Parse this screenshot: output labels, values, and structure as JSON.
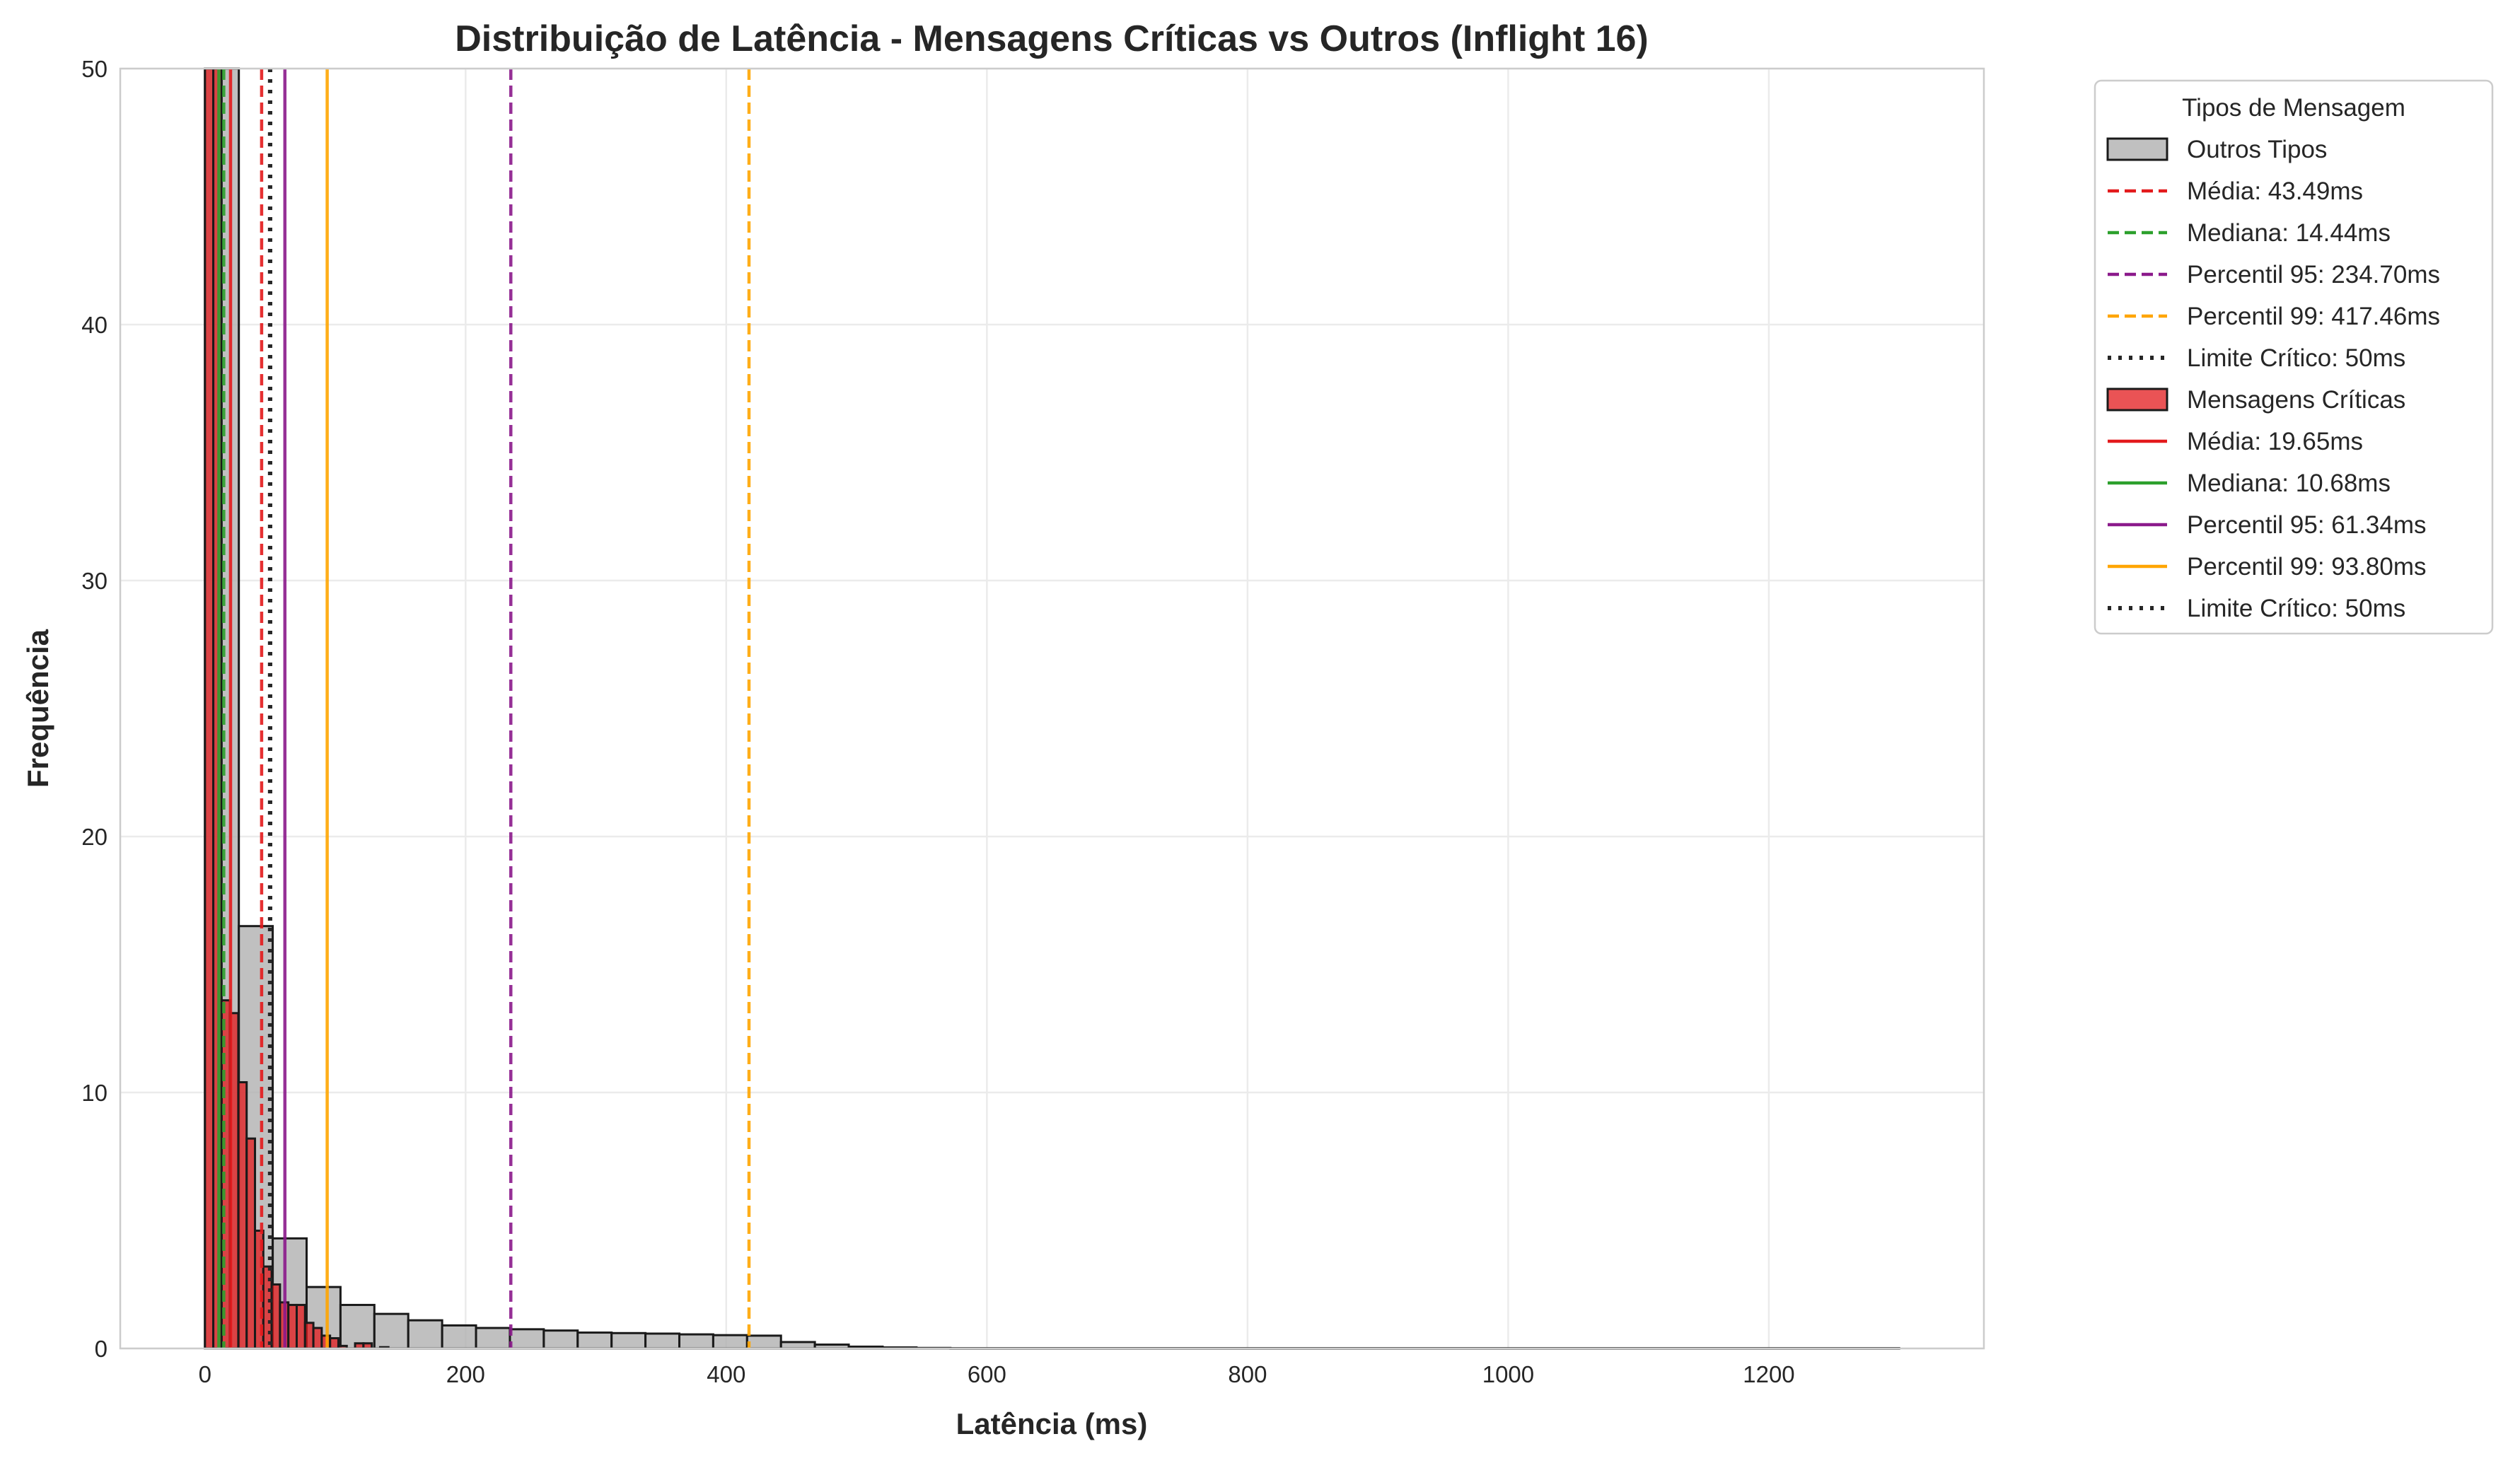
{
  "chart_data": {
    "type": "bar",
    "title": "Distribuição de Latência - Mensagens Críticas vs Outros (Inflight 16)",
    "xlabel": "Latência (ms)",
    "ylabel": "Frequência",
    "xlim": [
      -65,
      1365
    ],
    "ylim": [
      0,
      50
    ],
    "x_ticks": [
      0,
      200,
      400,
      600,
      800,
      1000,
      1200
    ],
    "y_ticks": [
      0,
      10,
      20,
      30,
      40,
      50
    ],
    "grid": true,
    "legend_title": "Tipos de Mensagem",
    "legend_position": "outside-right",
    "histograms": [
      {
        "name": "Outros Tipos",
        "color": "#b0b0b0",
        "bins": [
          {
            "x0": 0,
            "x1": 26,
            "value": 50
          },
          {
            "x0": 26,
            "x1": 52,
            "value": 16.5
          },
          {
            "x0": 52,
            "x1": 78,
            "value": 4.3
          },
          {
            "x0": 78,
            "x1": 104,
            "value": 2.4
          },
          {
            "x0": 104,
            "x1": 130,
            "value": 1.7
          },
          {
            "x0": 130,
            "x1": 156,
            "value": 1.35
          },
          {
            "x0": 156,
            "x1": 182,
            "value": 1.1
          },
          {
            "x0": 182,
            "x1": 208,
            "value": 0.9
          },
          {
            "x0": 208,
            "x1": 234,
            "value": 0.8
          },
          {
            "x0": 234,
            "x1": 260,
            "value": 0.75
          },
          {
            "x0": 260,
            "x1": 286,
            "value": 0.7
          },
          {
            "x0": 286,
            "x1": 312,
            "value": 0.62
          },
          {
            "x0": 312,
            "x1": 338,
            "value": 0.6
          },
          {
            "x0": 338,
            "x1": 364,
            "value": 0.58
          },
          {
            "x0": 364,
            "x1": 390,
            "value": 0.55
          },
          {
            "x0": 390,
            "x1": 416,
            "value": 0.52
          },
          {
            "x0": 416,
            "x1": 442,
            "value": 0.5
          },
          {
            "x0": 442,
            "x1": 468,
            "value": 0.25
          },
          {
            "x0": 468,
            "x1": 494,
            "value": 0.15
          },
          {
            "x0": 494,
            "x1": 520,
            "value": 0.07
          },
          {
            "x0": 520,
            "x1": 546,
            "value": 0.04
          },
          {
            "x0": 546,
            "x1": 572,
            "value": 0.02
          },
          {
            "x0": 572,
            "x1": 1300,
            "value": 0.01
          }
        ]
      },
      {
        "name": "Mensagens Críticas",
        "color": "#e31a1c",
        "bins": [
          {
            "x0": 0,
            "x1": 6.4,
            "value": 50
          },
          {
            "x0": 6.4,
            "x1": 12.8,
            "value": 50
          },
          {
            "x0": 12.8,
            "x1": 19.2,
            "value": 13.6
          },
          {
            "x0": 19.2,
            "x1": 25.6,
            "value": 13.1
          },
          {
            "x0": 25.6,
            "x1": 32,
            "value": 10.4
          },
          {
            "x0": 32,
            "x1": 38.4,
            "value": 8.2
          },
          {
            "x0": 38.4,
            "x1": 44.8,
            "value": 4.6
          },
          {
            "x0": 44.8,
            "x1": 51.2,
            "value": 3.2
          },
          {
            "x0": 51.2,
            "x1": 57.6,
            "value": 2.5
          },
          {
            "x0": 57.6,
            "x1": 64,
            "value": 1.8
          },
          {
            "x0": 64,
            "x1": 70.4,
            "value": 1.7
          },
          {
            "x0": 70.4,
            "x1": 76.8,
            "value": 1.7
          },
          {
            "x0": 76.8,
            "x1": 83.2,
            "value": 1.0
          },
          {
            "x0": 83.2,
            "x1": 89.6,
            "value": 0.8
          },
          {
            "x0": 89.6,
            "x1": 96,
            "value": 0.5
          },
          {
            "x0": 96,
            "x1": 102.4,
            "value": 0.4
          },
          {
            "x0": 102.4,
            "x1": 108.8,
            "value": 0.1
          },
          {
            "x0": 115.2,
            "x1": 121.6,
            "value": 0.2
          },
          {
            "x0": 121.6,
            "x1": 128,
            "value": 0.2
          },
          {
            "x0": 134.4,
            "x1": 140.8,
            "value": 0.05
          }
        ]
      }
    ],
    "reference_lines": [
      {
        "label": "Média: 43.49ms",
        "x": 43.49,
        "color": "#e31a1c",
        "style": "dashed"
      },
      {
        "label": "Mediana: 14.44ms",
        "x": 14.44,
        "color": "#2ca02c",
        "style": "dashed"
      },
      {
        "label": "Percentil 95: 234.70ms",
        "x": 234.7,
        "color": "#8b1a8b",
        "style": "dashed"
      },
      {
        "label": "Percentil 99: 417.46ms",
        "x": 417.46,
        "color": "#ffa500",
        "style": "dashed"
      },
      {
        "label": "Limite Crítico: 50ms",
        "x": 50,
        "color": "#262626",
        "style": "dotted"
      },
      {
        "label": "Média: 19.65ms",
        "x": 19.65,
        "color": "#e31a1c",
        "style": "solid"
      },
      {
        "label": "Mediana: 10.68ms",
        "x": 10.68,
        "color": "#2ca02c",
        "style": "solid"
      },
      {
        "label": "Percentil 95: 61.34ms",
        "x": 61.34,
        "color": "#8b1a8b",
        "style": "solid"
      },
      {
        "label": "Percentil 99: 93.80ms",
        "x": 93.8,
        "color": "#ffa500",
        "style": "solid"
      },
      {
        "label": "Limite Crítico: 50ms",
        "x": 50,
        "color": "#262626",
        "style": "dotted"
      }
    ],
    "legend": [
      {
        "kind": "patch",
        "label": "Outros Tipos",
        "color": "#b0b0b0"
      },
      {
        "kind": "line",
        "label": "Média: 43.49ms",
        "color": "#e31a1c",
        "style": "dashed"
      },
      {
        "kind": "line",
        "label": "Mediana: 14.44ms",
        "color": "#2ca02c",
        "style": "dashed"
      },
      {
        "kind": "line",
        "label": "Percentil 95: 234.70ms",
        "color": "#8b1a8b",
        "style": "dashed"
      },
      {
        "kind": "line",
        "label": "Percentil 99: 417.46ms",
        "color": "#ffa500",
        "style": "dashed"
      },
      {
        "kind": "line",
        "label": "Limite Crítico: 50ms",
        "color": "#262626",
        "style": "dotted"
      },
      {
        "kind": "patch",
        "label": "Mensagens Críticas",
        "color": "#e31a1c"
      },
      {
        "kind": "line",
        "label": "Média: 19.65ms",
        "color": "#e31a1c",
        "style": "solid"
      },
      {
        "kind": "line",
        "label": "Mediana: 10.68ms",
        "color": "#2ca02c",
        "style": "solid"
      },
      {
        "kind": "line",
        "label": "Percentil 95: 61.34ms",
        "color": "#8b1a8b",
        "style": "solid"
      },
      {
        "kind": "line",
        "label": "Percentil 99: 93.80ms",
        "color": "#ffa500",
        "style": "solid"
      },
      {
        "kind": "line",
        "label": "Limite Crítico: 50ms",
        "color": "#262626",
        "style": "dotted"
      }
    ]
  }
}
